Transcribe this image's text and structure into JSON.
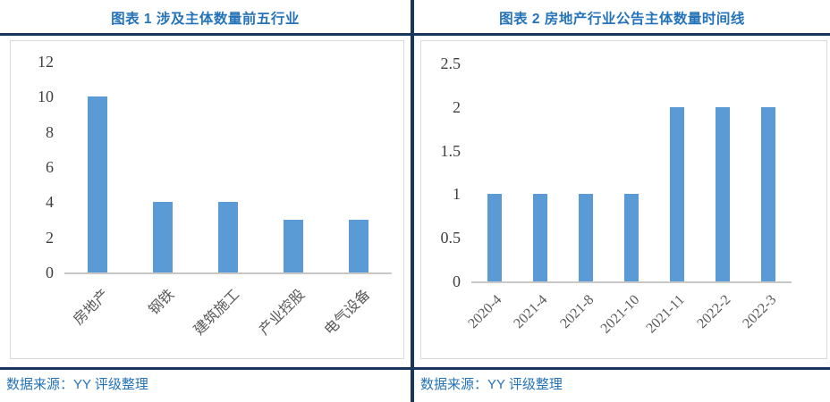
{
  "colors": {
    "accent_navy": "#17375E",
    "title_blue": "#2573B8",
    "bar_blue": "#5B9BD5",
    "axis_text": "#404040",
    "category_text": "#595959",
    "frame_border": "#D9D9D9",
    "baseline_gray": "#C8C8C8"
  },
  "panels": [
    {
      "title": "图表 1 涉及主体数量前五行业",
      "source": "数据来源：YY 评级整理"
    },
    {
      "title": "图表 2 房地产行业公告主体数量时间线",
      "source": "数据来源：YY 评级整理"
    }
  ],
  "chart_data": [
    {
      "type": "bar",
      "title": "图表 1 涉及主体数量前五行业",
      "categories": [
        "房地产",
        "钢铁",
        "建筑施工",
        "产业控股",
        "电气设备"
      ],
      "values": [
        10,
        4,
        4,
        3,
        3
      ],
      "xlabel": "",
      "ylabel": "",
      "ylim": [
        0,
        12
      ],
      "yticks": [
        "0",
        "2",
        "4",
        "6",
        "8",
        "10",
        "12"
      ],
      "bar_color": "#5B9BD5",
      "grid": false,
      "legend": "none"
    },
    {
      "type": "bar",
      "title": "图表 2 房地产行业公告主体数量时间线",
      "categories": [
        "2020-4",
        "2021-4",
        "2021-8",
        "2021-10",
        "2021-11",
        "2022-2",
        "2022-3"
      ],
      "values": [
        1,
        1,
        1,
        1,
        2,
        2,
        2
      ],
      "xlabel": "",
      "ylabel": "",
      "ylim": [
        0,
        2.5
      ],
      "yticks": [
        "0",
        "0.5",
        "1",
        "1.5",
        "2",
        "2.5"
      ],
      "bar_color": "#5B9BD5",
      "grid": false,
      "legend": "none"
    }
  ]
}
